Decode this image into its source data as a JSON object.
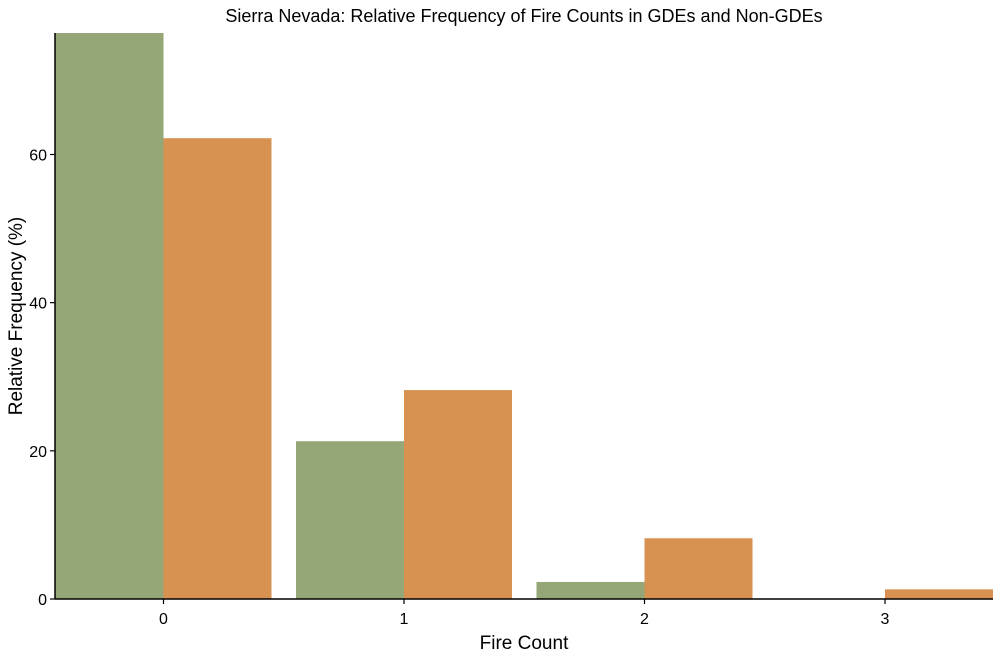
{
  "chart_data": {
    "type": "bar",
    "title": "Sierra Nevada: Relative Frequency of Fire Counts in GDEs and Non-GDEs",
    "xlabel": "Fire Count",
    "ylabel": "Relative Frequency (%)",
    "categories": [
      "0",
      "1",
      "2",
      "3"
    ],
    "series": [
      {
        "color": "#95a677",
        "values": [
          76.4,
          21.3,
          2.3,
          0.0
        ]
      },
      {
        "color": "#d79150",
        "values": [
          62.2,
          28.2,
          8.2,
          1.3
        ]
      }
    ],
    "ylim": [
      0,
      76.4
    ],
    "yticks": [
      0,
      20,
      40,
      60
    ],
    "grid": false,
    "legend": "none"
  }
}
